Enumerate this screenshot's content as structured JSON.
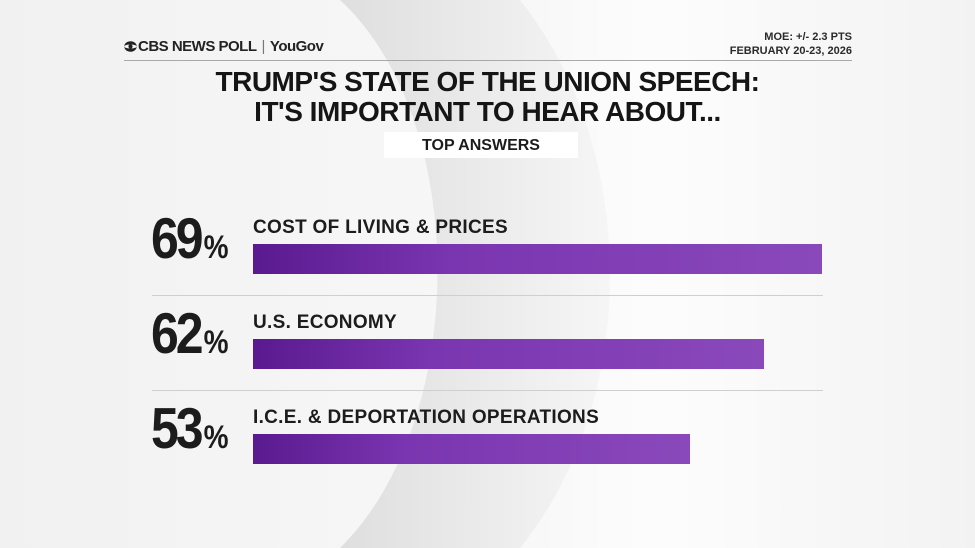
{
  "header": {
    "logo_text": "CBS NEWS POLL",
    "partner": "YouGov",
    "moe": "MOE: +/- 2.3 PTS",
    "date": "FEBRUARY 20-23, 2026"
  },
  "colors": {
    "bar": "#7a35b0",
    "bar_dark": "#5a1a8f",
    "text": "#1c1c1c"
  },
  "chart_data": {
    "type": "bar",
    "orientation": "horizontal",
    "title_line1": "TRUMP'S STATE OF THE UNION SPEECH:",
    "title_line2": "IT'S IMPORTANT TO HEAR ABOUT...",
    "subtitle": "TOP ANSWERS",
    "categories": [
      "COST OF LIVING & PRICES",
      "U.S. ECONOMY",
      "I.C.E. & DEPORTATION OPERATIONS"
    ],
    "values": [
      69,
      62,
      53
    ],
    "value_labels": [
      "69",
      "62",
      "53"
    ],
    "unit": "%",
    "xlim": [
      0,
      69
    ],
    "grid": false
  }
}
